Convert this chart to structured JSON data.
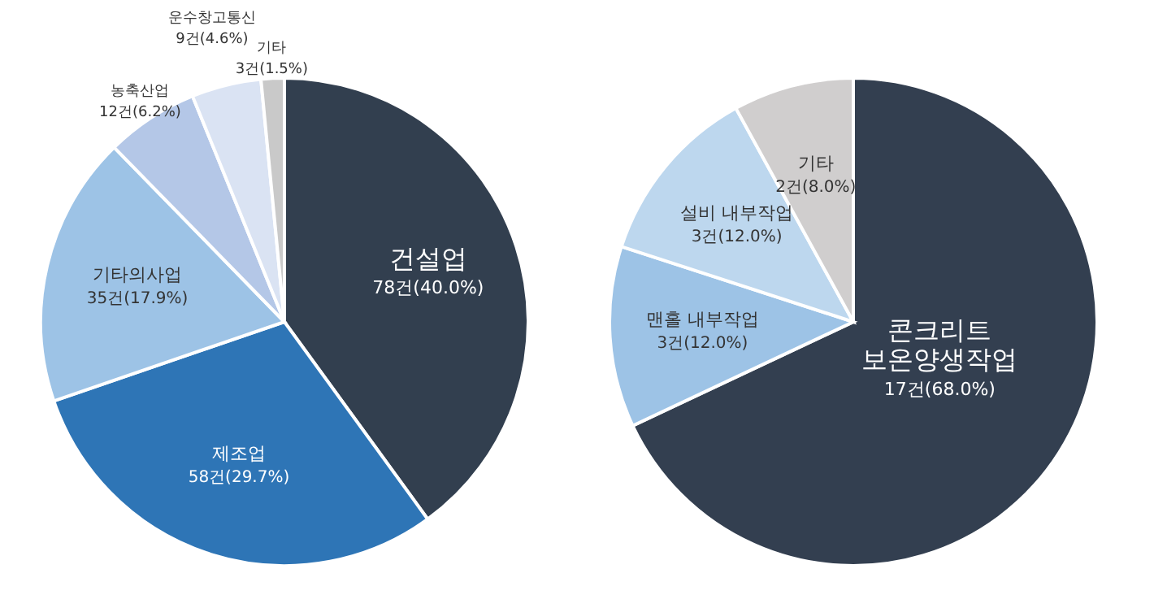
{
  "chart_data": [
    {
      "type": "pie",
      "categories": [
        "건설업",
        "제조업",
        "기타의사업",
        "농축산업",
        "운수창고통신",
        "기타"
      ],
      "values": [
        78,
        58,
        35,
        12,
        9,
        3
      ],
      "value_labels": [
        "78건(40.0%)",
        "58건(29.7%)",
        "35건(17.9%)",
        "12건(6.2%)",
        "9건(4.6%)",
        "3건(1.5%)"
      ],
      "colors": [
        "#323f4f",
        "#2e75b6",
        "#9dc3e6",
        "#b4c7e7",
        "#dae3f3",
        "#c9c9c9"
      ]
    },
    {
      "type": "pie",
      "categories": [
        "콘크리트 보온양생작업",
        "맨홀 내부작업",
        "설비 내부작업",
        "기타"
      ],
      "values": [
        17,
        3,
        3,
        2
      ],
      "value_labels": [
        "17건(68.0%)",
        "3건(12.0%)",
        "3건(12.0%)",
        "2건(8.0%)"
      ],
      "colors": [
        "#333f50",
        "#9dc3e6",
        "#bdd7ee",
        "#d0cece"
      ]
    }
  ]
}
